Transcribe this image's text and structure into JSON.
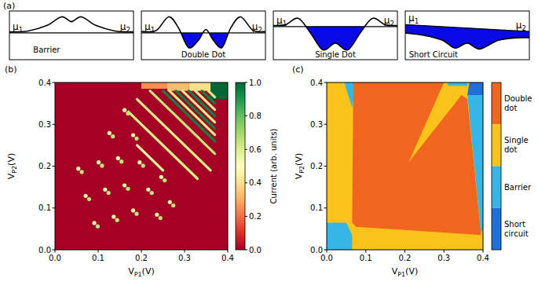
{
  "panel_a": {
    "label": "(a)",
    "mu_left": {
      "symbol": "μ",
      "sub": "1"
    },
    "mu_right": {
      "symbol": "μ",
      "sub": "2"
    },
    "diagrams": [
      {
        "label": "Barrier"
      },
      {
        "label": "Double Dot"
      },
      {
        "label": "Single Dot"
      },
      {
        "label": "Short Circuit"
      }
    ]
  },
  "chart_data": [
    {
      "type": "heatmap",
      "panel_label": "(b)",
      "x_label": {
        "symbol": "V",
        "sub": "P1",
        "unit": "(V)"
      },
      "y_label": {
        "symbol": "V",
        "sub": "P2",
        "unit": "(V)"
      },
      "xlim": [
        0,
        0.4
      ],
      "ylim": [
        0,
        0.4
      ],
      "xticks": [
        {
          "value": 0,
          "label": "0.0"
        },
        0.1,
        0.2,
        0.3,
        0.4
      ],
      "yticks": [
        {
          "value": 0,
          "label": "0.0"
        },
        0.1,
        0.2,
        0.3,
        0.4
      ],
      "colorbar": {
        "label": "Current (arb. units)",
        "lim": [
          0,
          1
        ],
        "ticks": [
          {
            "value": 0,
            "label": "0.0"
          },
          0.2,
          0.4,
          0.6,
          0.8,
          {
            "value": 1,
            "label": "1.0"
          }
        ]
      },
      "background_current": 0,
      "regions": [
        {
          "x": [
            0.2,
            0.26
          ],
          "y": [
            0.385,
            0.4
          ],
          "current": 0.25
        },
        {
          "x": [
            0.26,
            0.31
          ],
          "y": [
            0.38,
            0.4
          ],
          "current": 0.33
        },
        {
          "x": [
            0.31,
            0.36
          ],
          "y": [
            0.38,
            0.4
          ],
          "current": 0.4
        },
        {
          "x": [
            0.36,
            0.4
          ],
          "y": [
            0.36,
            0.4
          ],
          "current": 1.0
        }
      ],
      "transition_lines": [
        {
          "x": [
            0.19,
            0.25
          ],
          "y": [
            0.25,
            0.19
          ],
          "current": 0.55
        },
        {
          "x": [
            0.17,
            0.33
          ],
          "y": [
            0.33,
            0.17
          ],
          "current": 0.6
        },
        {
          "x": [
            0.19,
            0.36
          ],
          "y": [
            0.36,
            0.19
          ],
          "current": 0.6
        },
        {
          "x": [
            0.22,
            0.37
          ],
          "y": [
            0.38,
            0.23
          ],
          "current": 0.65
        },
        {
          "x": [
            0.25,
            0.37
          ],
          "y": [
            0.38,
            0.26
          ],
          "current": 0.95
        },
        {
          "x": [
            0.265,
            0.37
          ],
          "y": [
            0.38,
            0.275
          ],
          "current": 0.6
        },
        {
          "x": [
            0.28,
            0.37
          ],
          "y": [
            0.38,
            0.29
          ],
          "current": 0.95
        },
        {
          "x": [
            0.295,
            0.37
          ],
          "y": [
            0.38,
            0.305
          ],
          "current": 0.6
        },
        {
          "x": [
            0.31,
            0.37
          ],
          "y": [
            0.38,
            0.32
          ],
          "current": 0.95
        },
        {
          "x": [
            0.325,
            0.37
          ],
          "y": [
            0.38,
            0.335
          ],
          "current": 0.6
        },
        {
          "x": [
            0.34,
            0.37
          ],
          "y": [
            0.38,
            0.35
          ],
          "current": 0.95
        },
        {
          "x": [
            0.355,
            0.37
          ],
          "y": [
            0.38,
            0.365
          ],
          "current": 0.6
        }
      ],
      "triple_points": {
        "x": [
          0.054,
          0.062,
          0.071,
          0.079,
          0.091,
          0.099,
          0.101,
          0.109,
          0.116,
          0.124,
          0.136,
          0.144,
          0.126,
          0.134,
          0.146,
          0.154,
          0.161,
          0.169,
          0.181,
          0.189,
          0.161,
          0.169,
          0.181,
          0.189,
          0.196,
          0.204,
          0.216,
          0.224,
          0.236,
          0.244,
          0.246,
          0.254,
          0.266,
          0.274
        ],
        "y": [
          0.194,
          0.186,
          0.129,
          0.121,
          0.064,
          0.056,
          0.209,
          0.201,
          0.144,
          0.136,
          0.079,
          0.071,
          0.279,
          0.271,
          0.219,
          0.211,
          0.154,
          0.146,
          0.094,
          0.086,
          0.334,
          0.326,
          0.274,
          0.266,
          0.209,
          0.201,
          0.144,
          0.136,
          0.084,
          0.076,
          0.174,
          0.166,
          0.114,
          0.106
        ],
        "current": [
          0.55,
          0.65,
          0.55,
          0.65,
          0.55,
          0.65,
          0.55,
          0.65,
          0.55,
          0.65,
          0.55,
          0.65,
          0.55,
          0.65,
          0.55,
          0.65,
          0.55,
          0.65,
          0.55,
          0.65,
          0.55,
          0.65,
          0.55,
          0.65,
          0.55,
          0.65,
          0.55,
          0.65,
          0.55,
          0.65,
          0.55,
          0.65,
          0.55,
          0.65
        ]
      }
    },
    {
      "type": "region_map",
      "panel_label": "(c)",
      "x_label": {
        "symbol": "V",
        "sub": "P1",
        "unit": "(V)"
      },
      "y_label": {
        "symbol": "V",
        "sub": "P2",
        "unit": "(V)"
      },
      "xlim": [
        0,
        0.4
      ],
      "ylim": [
        0,
        0.4
      ],
      "xticks": [
        {
          "value": 0,
          "label": "0.0"
        },
        0.1,
        0.2,
        0.3,
        0.4
      ],
      "yticks": [
        {
          "value": 0,
          "label": "0.0"
        },
        0.1,
        0.2,
        0.3,
        0.4
      ],
      "classes": [
        {
          "name": "Double dot",
          "color": "#f0661f"
        },
        {
          "name": "Single dot",
          "color": "#fac31b"
        },
        {
          "name": "Barrier",
          "color": "#36b6e6"
        },
        {
          "name": "Short circuit",
          "color": "#1f6fd6"
        }
      ],
      "background_class": 1,
      "regions": [
        {
          "class": 2,
          "x": [
            0,
            0.065,
            0.065,
            0.05,
            0
          ],
          "y": [
            0,
            0,
            0.035,
            0.065,
            0.065
          ]
        },
        {
          "class": 2,
          "x": [
            0.045,
            0.075,
            0.065
          ],
          "y": [
            0.4,
            0.4,
            0.34
          ]
        },
        {
          "class": 0,
          "x": [
            0.065,
            0.068,
            0.3,
            0.21,
            0.345,
            0.36,
            0.395,
            0.075
          ],
          "y": [
            0.065,
            0.4,
            0.4,
            0.21,
            0.37,
            0.36,
            0.035,
            0.055
          ]
        },
        {
          "class": 2,
          "x": [
            0.31,
            0.36,
            0.36,
            0.31
          ],
          "y": [
            0.4,
            0.4,
            0.392,
            0.392
          ]
        },
        {
          "class": 2,
          "x": [
            0.36,
            0.4,
            0.4,
            0.395
          ],
          "y": [
            0.37,
            0.37,
            0.05,
            0.04
          ]
        },
        {
          "class": 3,
          "x": [
            0.36,
            0.4,
            0.4,
            0.365
          ],
          "y": [
            0.37,
            0.37,
            0.4,
            0.4
          ]
        }
      ]
    }
  ]
}
